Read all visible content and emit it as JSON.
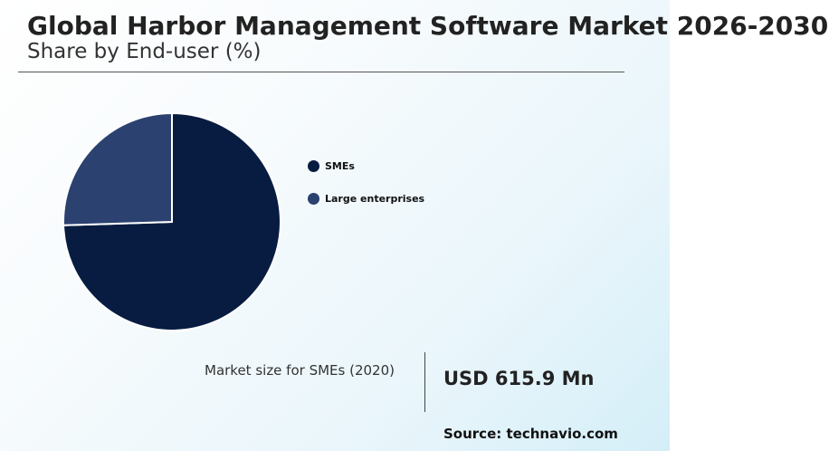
{
  "header": {
    "title": "Global Harbor Management Software Market 2026-2030",
    "subtitle": "Share by End-user (%)"
  },
  "chart_data": {
    "type": "pie",
    "categories": [
      "SMEs",
      "Large enterprises"
    ],
    "values": [
      74.5,
      25.5
    ],
    "colors": [
      "#081c42",
      "#2b4170"
    ],
    "legend_position": "right"
  },
  "market_size": {
    "label": "Market size for SMEs (2020)",
    "value": "USD 615.9 Mn"
  },
  "source": "Source: technavio.com"
}
